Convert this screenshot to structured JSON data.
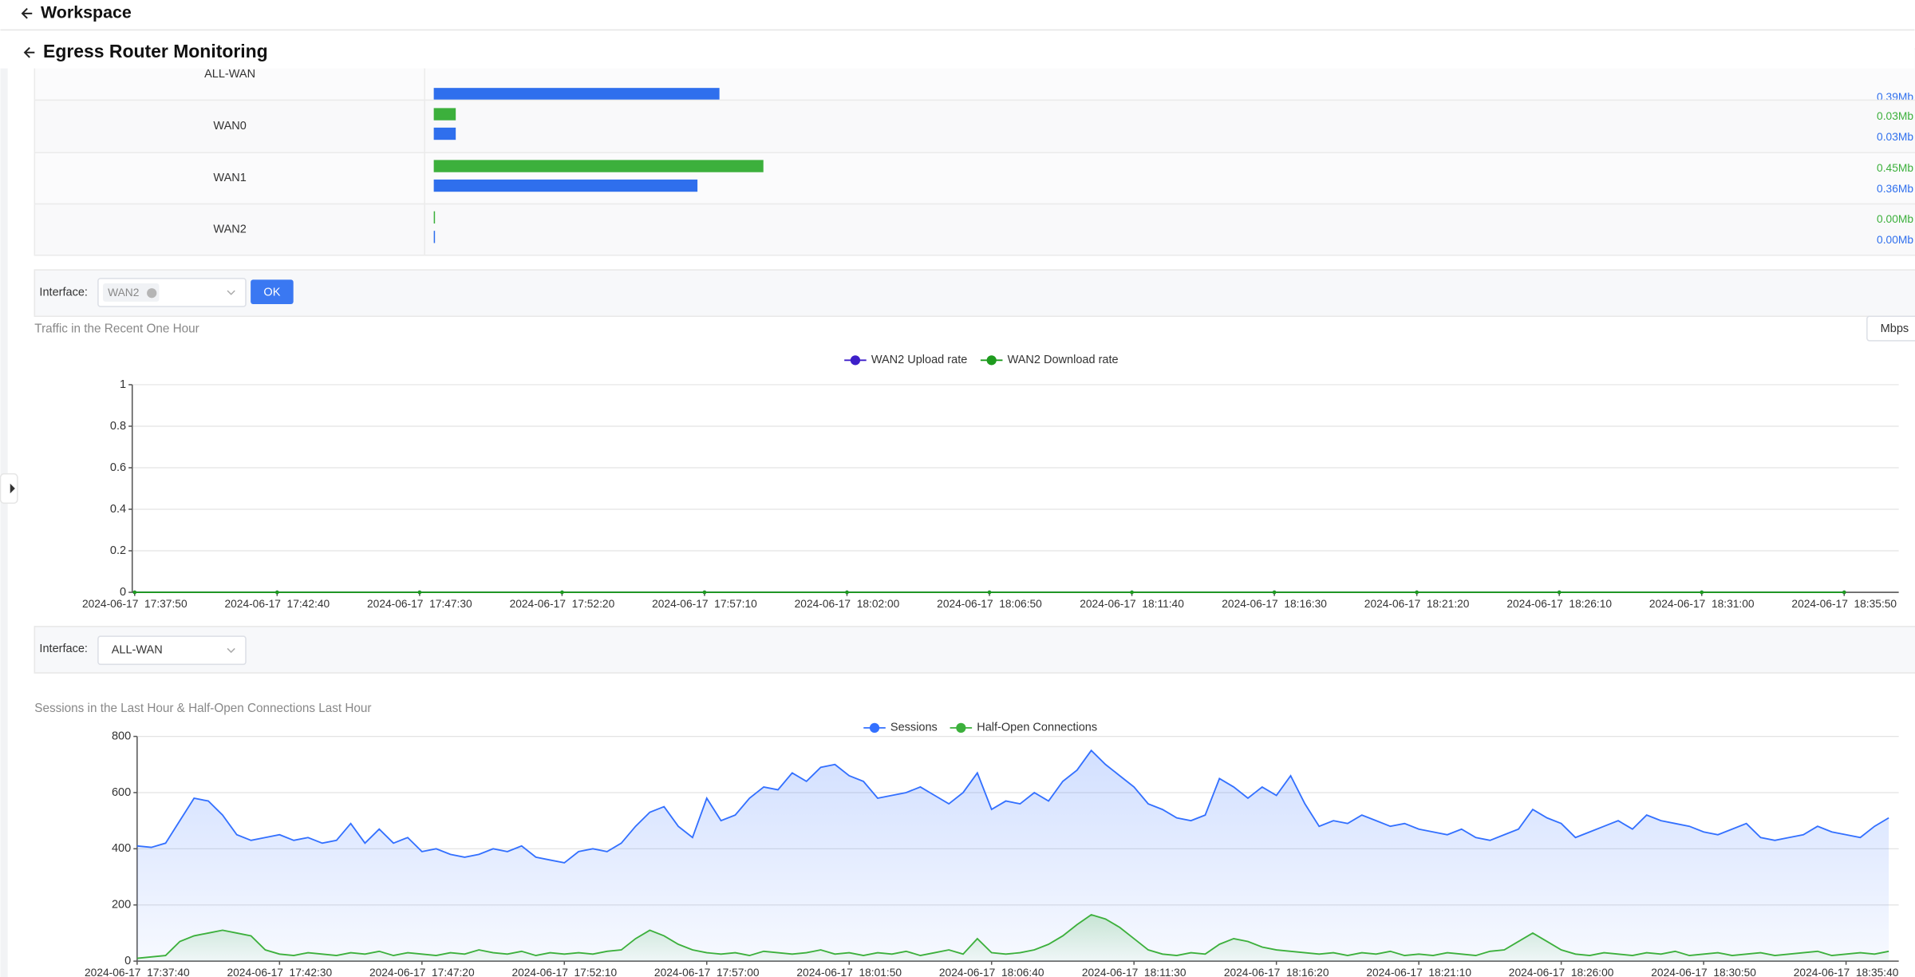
{
  "header": {
    "workspace": "Workspace",
    "title": "Egress Router Monitoring"
  },
  "filters": [
    {
      "label": "Interface:",
      "selected": "WAN2",
      "button": "OK"
    },
    {
      "label": "Interface:",
      "selected": "ALL-WAN"
    }
  ],
  "chart_data": [
    {
      "type": "bar",
      "orientation": "horizontal",
      "categories": [
        "ALL-WAN",
        "WAN0",
        "WAN1",
        "WAN2"
      ],
      "series": [
        {
          "color": "#3cb03c",
          "values": [
            null,
            0.03,
            0.45,
            0
          ],
          "value_labels": [
            null,
            "0.03Mb",
            "0.45Mb",
            "0.00Mb"
          ]
        },
        {
          "color": "#2f6fed",
          "values": [
            0.39,
            0.03,
            0.36,
            0
          ],
          "value_labels": [
            "0.39Mb",
            "0.03Mb",
            "0.36Mb",
            "0.00Mb"
          ]
        }
      ]
    },
    {
      "type": "line",
      "title": "Traffic in the Recent One Hour",
      "unit_button": "Mbps",
      "categories": [
        "2024-06-17  17:37:50",
        "2024-06-17  17:42:40",
        "2024-06-17  17:47:30",
        "2024-06-17  17:52:20",
        "2024-06-17  17:57:10",
        "2024-06-17  18:02:00",
        "2024-06-17  18:06:50",
        "2024-06-17  18:11:40",
        "2024-06-17  18:16:30",
        "2024-06-17  18:21:20",
        "2024-06-17  18:26:10",
        "2024-06-17  18:31:00",
        "2024-06-17  18:35:50"
      ],
      "series": [
        {
          "name": "WAN2 Upload rate",
          "color": "#3d1fc9",
          "values": [
            0,
            0,
            0,
            0,
            0,
            0,
            0,
            0,
            0,
            0,
            0,
            0,
            0
          ]
        },
        {
          "name": "WAN2 Download rate",
          "color": "#1e9b1e",
          "values": [
            0,
            0,
            0,
            0,
            0,
            0,
            0,
            0,
            0,
            0,
            0,
            0,
            0
          ]
        }
      ],
      "ylim": [
        0,
        1
      ],
      "yticks": [
        0,
        0.2,
        0.4,
        0.6,
        0.8,
        1
      ],
      "grid": true
    },
    {
      "type": "area",
      "title": "Sessions in the Last Hour & Half-Open Connections Last Hour",
      "categories": [
        "2024-06-17  17:37:40",
        null,
        null,
        null,
        null,
        null,
        null,
        null,
        null,
        null,
        "2024-06-17  17:42:30",
        null,
        null,
        null,
        null,
        null,
        null,
        null,
        null,
        null,
        "2024-06-17  17:47:20",
        null,
        null,
        null,
        null,
        null,
        null,
        null,
        null,
        null,
        "2024-06-17  17:52:10",
        null,
        null,
        null,
        null,
        null,
        null,
        null,
        null,
        null,
        "2024-06-17  17:57:00",
        null,
        null,
        null,
        null,
        null,
        null,
        null,
        null,
        null,
        "2024-06-17  18:01:50",
        null,
        null,
        null,
        null,
        null,
        null,
        null,
        null,
        null,
        "2024-06-17  18:06:40",
        null,
        null,
        null,
        null,
        null,
        null,
        null,
        null,
        null,
        "2024-06-17  18:11:30",
        null,
        null,
        null,
        null,
        null,
        null,
        null,
        null,
        null,
        "2024-06-17  18:16:20",
        null,
        null,
        null,
        null,
        null,
        null,
        null,
        null,
        null,
        "2024-06-17  18:21:10",
        null,
        null,
        null,
        null,
        null,
        null,
        null,
        null,
        null,
        "2024-06-17  18:26:00",
        null,
        null,
        null,
        null,
        null,
        null,
        null,
        null,
        null,
        "2024-06-17  18:30:50",
        null,
        null,
        null,
        null,
        null,
        null,
        null,
        null,
        null,
        "2024-06-17  18:35:40",
        null,
        null,
        null
      ],
      "series": [
        {
          "name": "Sessions",
          "color": "#3370ff",
          "values": [
            410,
            405,
            420,
            500,
            580,
            570,
            520,
            450,
            430,
            440,
            450,
            430,
            440,
            420,
            430,
            490,
            420,
            470,
            420,
            440,
            390,
            400,
            380,
            370,
            380,
            400,
            390,
            410,
            370,
            360,
            350,
            390,
            400,
            390,
            420,
            480,
            530,
            550,
            480,
            440,
            580,
            500,
            520,
            580,
            620,
            610,
            670,
            640,
            690,
            700,
            660,
            640,
            580,
            590,
            600,
            620,
            590,
            560,
            600,
            670,
            540,
            570,
            560,
            600,
            570,
            640,
            680,
            750,
            700,
            660,
            620,
            560,
            540,
            510,
            500,
            520,
            650,
            620,
            580,
            620,
            590,
            660,
            560,
            480,
            500,
            490,
            520,
            500,
            480,
            490,
            470,
            460,
            450,
            470,
            440,
            430,
            450,
            470,
            540,
            510,
            490,
            440,
            460,
            480,
            500,
            470,
            520,
            500,
            490,
            480,
            460,
            450,
            470,
            490,
            440,
            430,
            440,
            450,
            480,
            460,
            450,
            440,
            480,
            510
          ]
        },
        {
          "name": "Half-Open Connections",
          "color": "#3cb03c",
          "values": [
            10,
            15,
            20,
            70,
            90,
            100,
            110,
            100,
            90,
            40,
            25,
            20,
            30,
            25,
            20,
            30,
            25,
            35,
            20,
            30,
            25,
            20,
            30,
            25,
            40,
            30,
            25,
            35,
            20,
            30,
            25,
            30,
            25,
            35,
            40,
            80,
            110,
            90,
            60,
            40,
            30,
            25,
            30,
            20,
            35,
            30,
            25,
            30,
            40,
            25,
            30,
            20,
            30,
            25,
            35,
            20,
            30,
            40,
            25,
            80,
            30,
            25,
            30,
            40,
            60,
            90,
            130,
            165,
            150,
            120,
            80,
            40,
            25,
            20,
            30,
            25,
            60,
            80,
            70,
            50,
            40,
            35,
            30,
            25,
            30,
            20,
            30,
            25,
            35,
            20,
            25,
            20,
            30,
            25,
            20,
            35,
            40,
            70,
            100,
            70,
            40,
            25,
            20,
            30,
            25,
            20,
            30,
            25,
            35,
            20,
            25,
            30,
            20,
            25,
            30,
            20,
            25,
            30,
            35,
            20,
            25,
            30,
            25,
            35
          ]
        }
      ],
      "ylim": [
        0,
        800
      ],
      "yticks": [
        0,
        200,
        400,
        600,
        800
      ],
      "grid": true
    }
  ]
}
